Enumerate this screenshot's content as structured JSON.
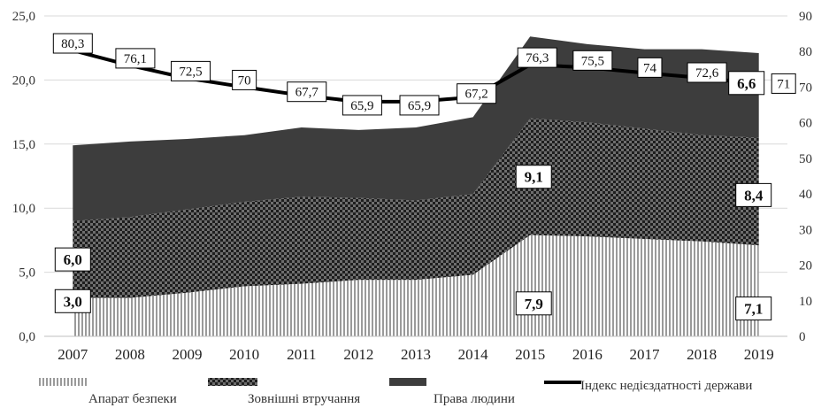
{
  "chart_data": {
    "type": "area",
    "x": [
      "2007",
      "2008",
      "2009",
      "2010",
      "2011",
      "2012",
      "2013",
      "2014",
      "2015",
      "2016",
      "2017",
      "2018",
      "2019"
    ],
    "left_axis": {
      "ylim": [
        0,
        25
      ],
      "ticks": [
        "0,0",
        "5,0",
        "10,0",
        "15,0",
        "20,0",
        "25,0"
      ]
    },
    "right_axis": {
      "ylim": [
        0,
        90
      ],
      "ticks": [
        "0",
        "10",
        "20",
        "30",
        "40",
        "50",
        "60",
        "70",
        "80",
        "90"
      ]
    },
    "series": [
      {
        "name": "Апарат безпеки",
        "kind": "stacked-area",
        "pattern": "vertical-stripes",
        "values": [
          3.0,
          3.0,
          3.4,
          3.9,
          4.1,
          4.4,
          4.4,
          4.8,
          7.9,
          7.8,
          7.6,
          7.4,
          7.1
        ]
      },
      {
        "name": "Зовнішні втручання",
        "kind": "stacked-area",
        "pattern": "checker",
        "values": [
          6.0,
          6.3,
          6.5,
          6.6,
          6.8,
          6.4,
          6.2,
          6.3,
          9.1,
          8.9,
          8.6,
          8.3,
          8.4
        ]
      },
      {
        "name": "Права людини",
        "kind": "stacked-area",
        "pattern": "solid-dark",
        "values": [
          5.9,
          5.9,
          5.5,
          5.2,
          5.4,
          5.3,
          5.7,
          6.0,
          6.4,
          6.1,
          6.2,
          6.7,
          6.6
        ]
      },
      {
        "name": "Індекс недієздатності держави",
        "kind": "line",
        "axis": "right",
        "values": [
          80.3,
          76.1,
          72.5,
          70,
          67.7,
          65.9,
          65.9,
          67.2,
          76.3,
          75.5,
          74,
          72.6,
          71
        ],
        "labels": [
          "80,3",
          "76,1",
          "72,5",
          "70",
          "67,7",
          "65,9",
          "65,9",
          "67,2",
          "76,3",
          "75,5",
          "74",
          "72,6",
          "71"
        ]
      }
    ],
    "value_labels": [
      {
        "series": 0,
        "index": 0,
        "text": "3,0"
      },
      {
        "series": 1,
        "index": 0,
        "text": "6,0"
      },
      {
        "series": 1,
        "index": 8,
        "text": "9,1"
      },
      {
        "series": 0,
        "index": 8,
        "text": "7,9"
      },
      {
        "series": 1,
        "index": 12,
        "text": "8,4"
      },
      {
        "series": 0,
        "index": 12,
        "text": "7,1"
      },
      {
        "series": 2,
        "index": 12,
        "text": "6,6"
      }
    ],
    "legend": {
      "placement": "bottom",
      "items": [
        "Апарат безпеки",
        "Зовнішні втручання",
        "Права людини",
        "Індекс недієздатності держави"
      ]
    },
    "grid": true,
    "colors": {
      "dark": "#3d3d3d",
      "stripe": "#9a9a9a",
      "line": "#000000",
      "grid": "#d9d9d9"
    }
  }
}
